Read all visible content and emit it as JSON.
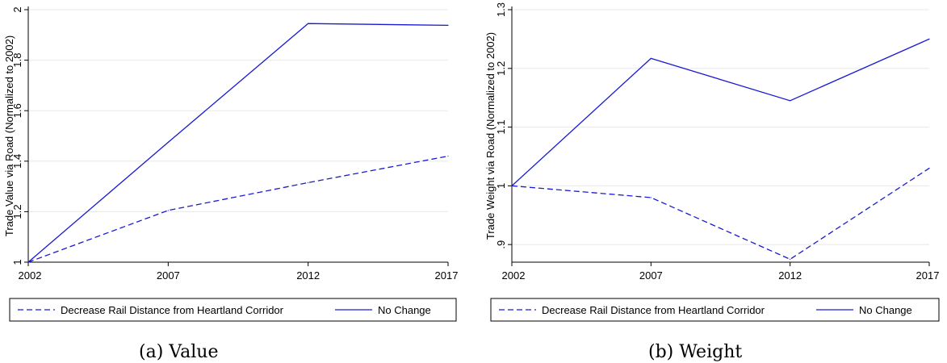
{
  "colors": {
    "series": "#1a1ad4",
    "axis": "#000000",
    "grid": "#e8e8e8",
    "legend_border": "#000000"
  },
  "chart_data": [
    {
      "type": "line",
      "caption": "(a) Value",
      "xlabel": "",
      "ylabel": "Trade Value via Road (Normalized to 2002)",
      "x": [
        2002,
        2007,
        2012,
        2017
      ],
      "x_tick_labels": [
        "2002",
        "2007",
        "2012",
        "2017"
      ],
      "xlim": [
        2002,
        2017
      ],
      "ylim": [
        1,
        2
      ],
      "y_ticks": [
        1,
        1.2,
        1.4,
        1.6,
        1.8,
        2
      ],
      "y_tick_labels": [
        "1",
        "1.2",
        "1.4",
        "1.6",
        "1.8",
        "2"
      ],
      "grid": true,
      "legend_position": "bottom",
      "series": [
        {
          "name": "Decrease Rail Distance from Heartland Corridor",
          "style": "dashed",
          "values": [
            1,
            1.205,
            1.315,
            1.42
          ]
        },
        {
          "name": "No Change",
          "style": "solid",
          "values": [
            1,
            1.475,
            1.945,
            1.938
          ]
        }
      ]
    },
    {
      "type": "line",
      "caption": "(b) Weight",
      "xlabel": "",
      "ylabel": "Trade Weight via Road (Normalized to 2002)",
      "x": [
        2002,
        2007,
        2012,
        2017
      ],
      "x_tick_labels": [
        "2002",
        "2007",
        "2012",
        "2017"
      ],
      "xlim": [
        2002,
        2017
      ],
      "ylim": [
        0.87,
        1.3
      ],
      "y_ticks": [
        0.9,
        1,
        1.1,
        1.2,
        1.3
      ],
      "y_tick_labels": [
        ".9",
        "1",
        "1.1",
        "1.2",
        "1.3"
      ],
      "grid": true,
      "legend_position": "bottom",
      "series": [
        {
          "name": "Decrease Rail Distance from Heartland Corridor",
          "style": "dashed",
          "values": [
            1,
            0.98,
            0.875,
            1.03
          ]
        },
        {
          "name": "No Change",
          "style": "solid",
          "values": [
            1,
            1.217,
            1.145,
            1.25
          ]
        }
      ]
    }
  ]
}
